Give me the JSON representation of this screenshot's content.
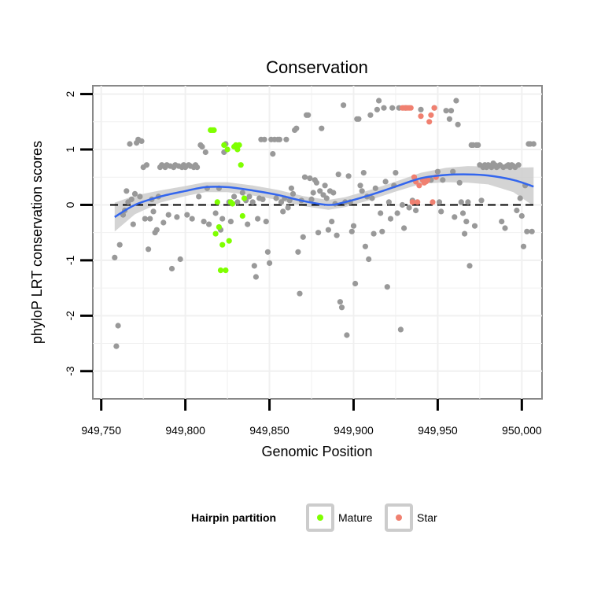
{
  "chart_data": {
    "type": "scatter",
    "title": "Conservation",
    "xlabel": "Genomic Position",
    "ylabel": "phyloP LRT conservation scores",
    "xlim": [
      949745,
      950012
    ],
    "ylim": [
      -3.5,
      2.15
    ],
    "x_ticks": [
      949750,
      949800,
      949850,
      949900,
      949950,
      950000
    ],
    "x_tick_labels": [
      "949,750",
      "949,800",
      "949,850",
      "949,900",
      "949,950",
      "950,000"
    ],
    "y_ticks": [
      -3,
      -2,
      -1,
      0,
      1,
      2
    ],
    "y_tick_labels": [
      "-3",
      "-2",
      "-1",
      "0",
      "1",
      "2"
    ],
    "reference_line_y": 0,
    "legend": {
      "title": "Hairpin partition",
      "position": "bottom",
      "entries": [
        {
          "name": "Mature",
          "color": "#7fff00"
        },
        {
          "name": "Star",
          "color": "#f08070"
        }
      ]
    },
    "colors": {
      "other": "#999999",
      "Mature": "#7fff00",
      "Star": "#f08070",
      "smooth": "#3366ee",
      "ribbon": "#cccccc",
      "panel_grid": "#f0f0f0",
      "panel_border": "#888888"
    },
    "series": [
      {
        "name": "Other",
        "points": [
          [
            949758,
            -0.95
          ],
          [
            949759,
            -2.55
          ],
          [
            949760,
            -2.18
          ],
          [
            949761,
            -0.72
          ],
          [
            949763,
            -0.18
          ],
          [
            949764,
            -0.1
          ],
          [
            949765,
            0.25
          ],
          [
            949766,
            0.05
          ],
          [
            949767,
            1.1
          ],
          [
            949768,
            0.1
          ],
          [
            949769,
            -0.35
          ],
          [
            949770,
            0.2
          ],
          [
            949771,
            1.12
          ],
          [
            949772,
            1.18
          ],
          [
            949773,
            0.15
          ],
          [
            949774,
            1.15
          ],
          [
            949775,
            0.68
          ],
          [
            949776,
            -0.25
          ],
          [
            949777,
            0.72
          ],
          [
            949778,
            -0.8
          ],
          [
            949779,
            -0.25
          ],
          [
            949780,
            0.1
          ],
          [
            949781,
            -0.12
          ],
          [
            949782,
            -0.5
          ],
          [
            949783,
            -0.45
          ],
          [
            949784,
            0.15
          ],
          [
            949785,
            0.68
          ],
          [
            949786,
            0.72
          ],
          [
            949787,
            -0.32
          ],
          [
            949788,
            0.68
          ],
          [
            949789,
            0.72
          ],
          [
            949790,
            -0.18
          ],
          [
            949791,
            0.7
          ],
          [
            949792,
            -1.15
          ],
          [
            949793,
            0.68
          ],
          [
            949794,
            0.72
          ],
          [
            949795,
            -0.22
          ],
          [
            949796,
            0.7
          ],
          [
            949797,
            -0.98
          ],
          [
            949798,
            0.68
          ],
          [
            949799,
            0.72
          ],
          [
            949800,
            0.68
          ],
          [
            949801,
            -0.18
          ],
          [
            949802,
            0.72
          ],
          [
            949803,
            0.7
          ],
          [
            949804,
            -0.25
          ],
          [
            949805,
            0.68
          ],
          [
            949806,
            0.72
          ],
          [
            949807,
            0.68
          ],
          [
            949808,
            0.15
          ],
          [
            949809,
            1.08
          ],
          [
            949810,
            1.05
          ],
          [
            949811,
            -0.3
          ],
          [
            949812,
            0.95
          ],
          [
            949813,
            0.3
          ],
          [
            949814,
            -0.35
          ],
          [
            949818,
            -0.15
          ],
          [
            949820,
            0.3
          ],
          [
            949821,
            -0.45
          ],
          [
            949822,
            -0.25
          ],
          [
            949823,
            0.95
          ],
          [
            949824,
            1.1
          ],
          [
            949826,
            0.05
          ],
          [
            949827,
            -0.3
          ],
          [
            949829,
            0.15
          ],
          [
            949831,
            0.05
          ],
          [
            949834,
            0.22
          ],
          [
            949836,
            0.08
          ],
          [
            949837,
            -0.35
          ],
          [
            949838,
            0.15
          ],
          [
            949840,
            0.05
          ],
          [
            949841,
            -1.1
          ],
          [
            949842,
            -1.3
          ],
          [
            949843,
            -0.25
          ],
          [
            949844,
            0.12
          ],
          [
            949845,
            1.18
          ],
          [
            949846,
            0.1
          ],
          [
            949847,
            1.18
          ],
          [
            949848,
            -0.3
          ],
          [
            949849,
            -0.85
          ],
          [
            949850,
            -1.05
          ],
          [
            949851,
            1.18
          ],
          [
            949852,
            0.92
          ],
          [
            949853,
            1.18
          ],
          [
            949854,
            0.12
          ],
          [
            949855,
            1.18
          ],
          [
            949856,
            1.18
          ],
          [
            949857,
            0.05
          ],
          [
            949858,
            -0.12
          ],
          [
            949859,
            0.12
          ],
          [
            949860,
            1.18
          ],
          [
            949861,
            -0.05
          ],
          [
            949862,
            0.08
          ],
          [
            949863,
            0.3
          ],
          [
            949864,
            0.2
          ],
          [
            949865,
            1.35
          ],
          [
            949866,
            1.38
          ],
          [
            949867,
            -0.85
          ],
          [
            949868,
            -1.6
          ],
          [
            949869,
            0.08
          ],
          [
            949870,
            -0.58
          ],
          [
            949871,
            0.5
          ],
          [
            949872,
            1.62
          ],
          [
            949873,
            1.62
          ],
          [
            949874,
            0.48
          ],
          [
            949875,
            0.1
          ],
          [
            949876,
            0.22
          ],
          [
            949877,
            0.45
          ],
          [
            949878,
            0.4
          ],
          [
            949879,
            -0.5
          ],
          [
            949880,
            0.25
          ],
          [
            949881,
            1.38
          ],
          [
            949882,
            0.18
          ],
          [
            949883,
            0.35
          ],
          [
            949884,
            0.12
          ],
          [
            949885,
            -0.45
          ],
          [
            949886,
            0.25
          ],
          [
            949887,
            -0.3
          ],
          [
            949888,
            0.22
          ],
          [
            949889,
            0.02
          ],
          [
            949890,
            -0.55
          ],
          [
            949891,
            0.55
          ],
          [
            949892,
            -1.75
          ],
          [
            949893,
            -1.85
          ],
          [
            949894,
            1.8
          ],
          [
            949895,
            0.05
          ],
          [
            949896,
            -2.35
          ],
          [
            949897,
            0.52
          ],
          [
            949898,
            0.05
          ],
          [
            949899,
            -0.48
          ],
          [
            949900,
            -0.38
          ],
          [
            949901,
            -1.42
          ],
          [
            949902,
            1.55
          ],
          [
            949903,
            1.55
          ],
          [
            949904,
            0.35
          ],
          [
            949905,
            0.25
          ],
          [
            949906,
            0.58
          ],
          [
            949907,
            -0.75
          ],
          [
            949908,
            0.15
          ],
          [
            949909,
            -0.98
          ],
          [
            949910,
            1.62
          ],
          [
            949911,
            0.12
          ],
          [
            949912,
            -0.52
          ],
          [
            949913,
            0.3
          ],
          [
            949914,
            1.72
          ],
          [
            949915,
            1.88
          ],
          [
            949916,
            -0.15
          ],
          [
            949917,
            -0.48
          ],
          [
            949918,
            1.75
          ],
          [
            949919,
            0.42
          ],
          [
            949920,
            -1.48
          ],
          [
            949921,
            0.05
          ],
          [
            949922,
            -0.25
          ],
          [
            949923,
            1.75
          ],
          [
            949924,
            0.35
          ],
          [
            949925,
            0.58
          ],
          [
            949926,
            -0.15
          ],
          [
            949927,
            1.75
          ],
          [
            949928,
            -2.25
          ],
          [
            949929,
            0.0
          ],
          [
            949930,
            -0.42
          ],
          [
            949931,
            1.75
          ],
          [
            949933,
            -0.05
          ],
          [
            949935,
            0.08
          ],
          [
            949937,
            -0.1
          ],
          [
            949940,
            1.72
          ],
          [
            949944,
            0.45
          ],
          [
            949946,
            0.45
          ],
          [
            949948,
            1.75
          ],
          [
            949950,
            0.6
          ],
          [
            949951,
            0.05
          ],
          [
            949952,
            -0.12
          ],
          [
            949953,
            0.45
          ],
          [
            949955,
            1.7
          ],
          [
            949957,
            1.55
          ],
          [
            949958,
            1.7
          ],
          [
            949959,
            0.6
          ],
          [
            949960,
            -0.22
          ],
          [
            949961,
            1.88
          ],
          [
            949962,
            1.45
          ],
          [
            949963,
            0.4
          ],
          [
            949964,
            0.05
          ],
          [
            949965,
            -0.15
          ],
          [
            949966,
            -0.52
          ],
          [
            949967,
            -0.3
          ],
          [
            949968,
            0.05
          ],
          [
            949969,
            -1.1
          ],
          [
            949970,
            1.08
          ],
          [
            949971,
            1.08
          ],
          [
            949972,
            -0.38
          ],
          [
            949973,
            1.08
          ],
          [
            949974,
            1.08
          ],
          [
            949975,
            0.72
          ],
          [
            949976,
            0.08
          ],
          [
            949977,
            0.68
          ],
          [
            949978,
            0.72
          ],
          [
            949979,
            0.68
          ],
          [
            949980,
            0.72
          ],
          [
            949981,
            0.7
          ],
          [
            949982,
            0.68
          ],
          [
            949983,
            0.75
          ],
          [
            949984,
            0.72
          ],
          [
            949985,
            0.68
          ],
          [
            949986,
            0.7
          ],
          [
            949987,
            0.72
          ],
          [
            949988,
            -0.3
          ],
          [
            949989,
            0.68
          ],
          [
            949990,
            -0.42
          ],
          [
            949991,
            0.7
          ],
          [
            949992,
            0.72
          ],
          [
            949993,
            0.68
          ],
          [
            949994,
            0.72
          ],
          [
            949995,
            0.7
          ],
          [
            949996,
            0.68
          ],
          [
            949997,
            -0.1
          ],
          [
            949998,
            0.72
          ],
          [
            949999,
            0.12
          ],
          [
            950000,
            -0.2
          ],
          [
            950001,
            -0.75
          ],
          [
            950002,
            0.35
          ],
          [
            950003,
            -0.48
          ],
          [
            950004,
            1.1
          ],
          [
            950005,
            1.1
          ],
          [
            950006,
            -0.48
          ],
          [
            950007,
            1.1
          ]
        ]
      },
      {
        "name": "Mature",
        "points": [
          [
            949815,
            1.35
          ],
          [
            949816,
            1.35
          ],
          [
            949817,
            1.35
          ],
          [
            949818,
            -0.52
          ],
          [
            949819,
            0.05
          ],
          [
            949820,
            -0.4
          ],
          [
            949821,
            -1.18
          ],
          [
            949822,
            -0.72
          ],
          [
            949823,
            1.08
          ],
          [
            949824,
            -1.18
          ],
          [
            949825,
            1.0
          ],
          [
            949826,
            -0.65
          ],
          [
            949827,
            0.05
          ],
          [
            949828,
            0.02
          ],
          [
            949829,
            1.05
          ],
          [
            949830,
            1.08
          ],
          [
            949831,
            1.0
          ],
          [
            949832,
            1.08
          ],
          [
            949833,
            0.72
          ],
          [
            949834,
            -0.2
          ],
          [
            949835,
            0.12
          ]
        ]
      },
      {
        "name": "Star",
        "points": [
          [
            949929,
            1.75
          ],
          [
            949930,
            1.75
          ],
          [
            949931,
            1.75
          ],
          [
            949932,
            1.75
          ],
          [
            949933,
            1.75
          ],
          [
            949934,
            1.75
          ],
          [
            949935,
            0.05
          ],
          [
            949936,
            0.5
          ],
          [
            949937,
            0.42
          ],
          [
            949938,
            0.05
          ],
          [
            949939,
            0.35
          ],
          [
            949940,
            1.6
          ],
          [
            949941,
            0.45
          ],
          [
            949942,
            0.4
          ],
          [
            949943,
            0.42
          ],
          [
            949944,
            0.45
          ],
          [
            949945,
            1.5
          ],
          [
            949946,
            1.62
          ],
          [
            949947,
            0.05
          ],
          [
            949948,
            1.75
          ],
          [
            949949,
            0.5
          ]
        ]
      }
    ],
    "smooth": {
      "x": [
        949758,
        949770,
        949785,
        949800,
        949812,
        949825,
        949840,
        949855,
        949870,
        949885,
        949895,
        949910,
        949925,
        949940,
        949955,
        949968,
        949980,
        949995,
        950007
      ],
      "y": [
        -0.22,
        0.0,
        0.15,
        0.25,
        0.32,
        0.32,
        0.26,
        0.18,
        0.07,
        0.0,
        0.05,
        0.18,
        0.33,
        0.48,
        0.54,
        0.55,
        0.53,
        0.45,
        0.33
      ],
      "se": [
        0.26,
        0.17,
        0.11,
        0.09,
        0.09,
        0.09,
        0.09,
        0.09,
        0.09,
        0.09,
        0.09,
        0.09,
        0.09,
        0.1,
        0.13,
        0.15,
        0.16,
        0.22,
        0.35
      ]
    }
  }
}
